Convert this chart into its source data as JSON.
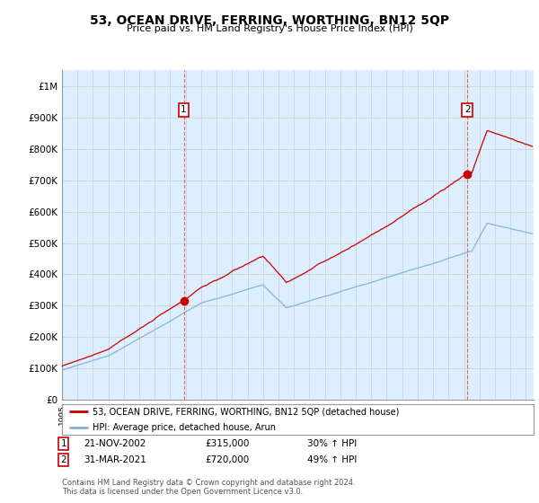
{
  "title": "53, OCEAN DRIVE, FERRING, WORTHING, BN12 5QP",
  "subtitle": "Price paid vs. HM Land Registry's House Price Index (HPI)",
  "sale1_date": "21-NOV-2002",
  "sale1_price": 315000,
  "sale1_label": "30% ↑ HPI",
  "sale2_date": "31-MAR-2021",
  "sale2_price": 720000,
  "sale2_label": "49% ↑ HPI",
  "legend_line1": "53, OCEAN DRIVE, FERRING, WORTHING, BN12 5QP (detached house)",
  "legend_line2": "HPI: Average price, detached house, Arun",
  "footer1": "Contains HM Land Registry data © Crown copyright and database right 2024.",
  "footer2": "This data is licensed under the Open Government Licence v3.0.",
  "red_color": "#cc0000",
  "blue_color": "#7bafd4",
  "fill_color": "#ddeeff",
  "vline_color": "#dd4444",
  "ylim_max": 1050000,
  "yticks": [
    0,
    100000,
    200000,
    300000,
    400000,
    500000,
    600000,
    700000,
    800000,
    900000,
    1000000
  ],
  "ytick_labels": [
    "£0",
    "£100K",
    "£200K",
    "£300K",
    "£400K",
    "£500K",
    "£600K",
    "£700K",
    "£800K",
    "£900K",
    "£1M"
  ],
  "xmin": 1995,
  "xmax": 2025.5,
  "background_color": "#ffffff",
  "grid_color": "#cccccc",
  "chart_bg_color": "#ddeeff"
}
